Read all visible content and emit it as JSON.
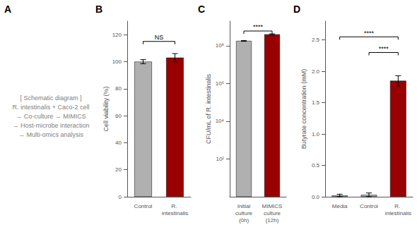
{
  "chart_data": [
    {
      "type": "text",
      "title": "A",
      "annotations": [
        "[ Schematic diagram ]",
        "R. intestinalis + Caco-2 cell",
        "→ Co-culture → MIMICS",
        "→ Host-microbe interaction",
        "→ Multi-omics analysis"
      ]
    },
    {
      "type": "bar",
      "title": "B",
      "categories": [
        "Control",
        "R. intestinalis"
      ],
      "values": [
        100,
        103
      ],
      "errors": [
        1.5,
        3.0
      ],
      "colors": [
        "#b0b0b0",
        "#990000"
      ],
      "ylabel": "Cell viability (%)",
      "ylim": [
        0,
        130
      ],
      "yticks": [
        0,
        20,
        40,
        60,
        80,
        100,
        120
      ],
      "grid": false,
      "annotations": [
        {
          "text": "NS",
          "from": "Control",
          "to": "R. intestinalis",
          "y": 115
        }
      ]
    },
    {
      "type": "bar",
      "title": "C",
      "categories": [
        "Initial\nculture\n(0h)",
        "MIMICS\nculture\n(12h)"
      ],
      "values": [
        180000000,
        400000000
      ],
      "errors": [
        9000000,
        24000000
      ],
      "colors": [
        "#b0b0b0",
        "#990000"
      ],
      "ylabel": "CFU/mL of R. intestinalis",
      "log": "y",
      "ylim": [
        1,
        2000000000
      ],
      "yticks": [
        {
          "value": 100,
          "label": "10²"
        },
        {
          "value": 10000,
          "label": "10⁴"
        },
        {
          "value": 1000000,
          "label": "10⁶"
        },
        {
          "value": 100000000,
          "label": "10⁸"
        }
      ],
      "grid": false,
      "annotations": [
        {
          "text": "****",
          "from": "Initial\nculture\n(0h)",
          "to": "MIMICS\nculture\n(12h)",
          "y": 600000000
        }
      ]
    },
    {
      "type": "bar",
      "title": "D",
      "categories": [
        "Media",
        "Control",
        "R. intestinalis"
      ],
      "values": [
        0.02,
        0.03,
        1.85
      ],
      "errors": [
        0.02,
        0.03,
        0.08
      ],
      "colors": [
        "#b0b0b0",
        "#b0b0b0",
        "#990000"
      ],
      "ylabel": "Butyrate concentration (mM)",
      "ylim": [
        0,
        2.8
      ],
      "yticks": [
        {
          "value": 0,
          "label": "0.0"
        },
        0.5,
        {
          "value": 1.0,
          "label": "1.0"
        },
        1.5,
        {
          "value": 2.0,
          "label": "2.0"
        },
        2.5
      ],
      "grid": false,
      "annotations": [
        {
          "text": "****",
          "from": "Media",
          "to": "R. intestinalis",
          "y": 2.55
        },
        {
          "text": "****",
          "from": "Control",
          "to": "R. intestinalis",
          "y": 2.3
        }
      ]
    }
  ]
}
